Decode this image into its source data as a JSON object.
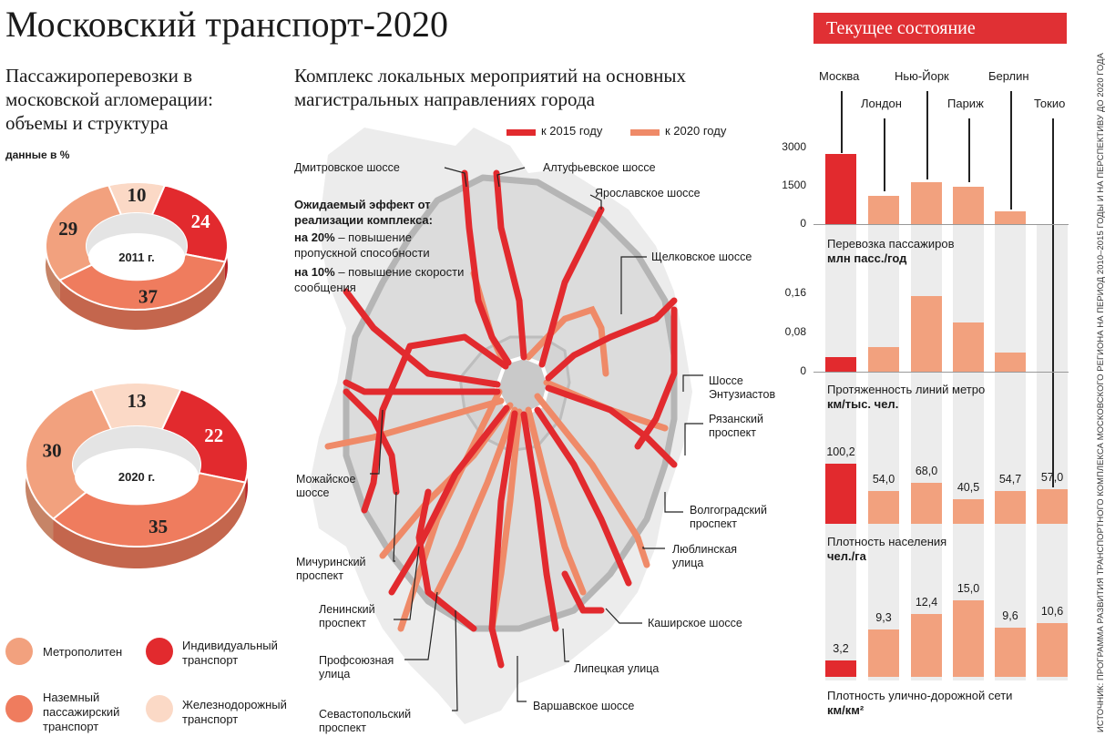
{
  "title": "Московский транспорт-2020",
  "passenger": {
    "title": "Пассажироперевозки в московской агломерации: объемы и структура",
    "note": "данные в %"
  },
  "legend": [
    {
      "label": "Метрополитен",
      "color": "#f2a17e"
    },
    {
      "label": "Индивидуальный транспорт",
      "color": "#e22a2e"
    },
    {
      "label": "Наземный пассажирский транспорт",
      "color": "#ef7c5e"
    },
    {
      "label": "Железнодорожный транспорт",
      "color": "#fbd9c6"
    }
  ],
  "map": {
    "title": "Комплекс локальных мероприятий на основных магистральных направлениях города",
    "legend": [
      {
        "label": "к 2015 году",
        "color": "#e22a2e"
      },
      {
        "label": "к 2020 году",
        "color": "#ef8a68"
      }
    ],
    "effect": {
      "heading": "Ожидаемый эффект от реализации комплекса:",
      "line1_value": "на 20%",
      "line1_text": " – повышение пропускной способности",
      "line2_value": "на 10%",
      "line2_text": " – повышение скорости сообщения"
    },
    "roads": [
      "Дмитровское шоссе",
      "Алтуфьевское шоссе",
      "Ярославское шоссе",
      "Щелковское шоссе",
      "Шоссе Энтузиастов",
      "Рязанский проспект",
      "Волгоградский проспект",
      "Люблинская улица",
      "Каширское шоссе",
      "Липецкая улица",
      "Варшавское шоссе",
      "Севастопольский проспект",
      "Профсоюзная улица",
      "Ленинский проспект",
      "Мичуринский проспект",
      "Можайское шоссе"
    ]
  },
  "current": {
    "title": "Текущее состояние",
    "metrics": [
      {
        "line1": "Перевозка пассажиров",
        "line2": "млн пасс./год"
      },
      {
        "line1": "Протяженность линий метро",
        "line2": "км/тыс. чел."
      },
      {
        "line1": "Плотность населения",
        "line2": "чел./га"
      },
      {
        "line1": "Плотность улично-дорожной сети",
        "line2": "км/км²"
      }
    ]
  },
  "source_text": "ИСТОЧНИК: ПРОГРАММА РАЗВИТИЯ ТРАНСПОРТНОГО КОМПЛЕКСА МОСКОВСКОГО РЕГИОНА НА ПЕРИОД 2010–2015 ГОДЫ И НА ПЕРСПЕКТИВУ ДО 2020 ГОДА",
  "chart_data": [
    {
      "type": "pie",
      "title": "2011 г.",
      "categories": [
        "Метрополитен",
        "Индивидуальный транспорт",
        "Наземный пассажирский транспорт",
        "Железнодорожный транспорт"
      ],
      "values": [
        29,
        24,
        37,
        10
      ]
    },
    {
      "type": "pie",
      "title": "2020 г.",
      "categories": [
        "Метрополитен",
        "Индивидуальный транспорт",
        "Наземный пассажирский транспорт",
        "Железнодорожный транспорт"
      ],
      "values": [
        30,
        22,
        35,
        13
      ]
    },
    {
      "type": "bar",
      "categories": [
        "Москва",
        "Лондон",
        "Нью-Йорк",
        "Париж",
        "Берлин",
        "Токио"
      ],
      "ylabel": "Перевозка пассажиров млн пасс./год",
      "ylim": [
        0,
        3000
      ],
      "yticks": [
        "0",
        "1500",
        "3000"
      ],
      "values": [
        2750,
        1100,
        1650,
        1480,
        500,
        null
      ]
    },
    {
      "type": "bar",
      "categories": [
        "Москва",
        "Лондон",
        "Нью-Йорк",
        "Париж",
        "Берлин",
        "Токио"
      ],
      "ylabel": "Протяженность линий метро км/тыс. чел.",
      "ylim": [
        0,
        0.16
      ],
      "yticks": [
        "0",
        "0,08",
        "0,16"
      ],
      "values": [
        0.03,
        0.05,
        0.155,
        0.1,
        0.04,
        null
      ]
    },
    {
      "type": "bar",
      "categories": [
        "Москва",
        "Лондон",
        "Нью-Йорк",
        "Париж",
        "Берлин",
        "Токио"
      ],
      "ylabel": "Плотность населения чел./га",
      "values": [
        100.2,
        54.0,
        68.0,
        40.5,
        54.7,
        57.0
      ],
      "labels": [
        "100,2",
        "54,0",
        "68,0",
        "40,5",
        "54,7",
        "57,0"
      ]
    },
    {
      "type": "bar",
      "categories": [
        "Москва",
        "Лондон",
        "Нью-Йорк",
        "Париж",
        "Берлин",
        "Токио"
      ],
      "ylabel": "Плотность улично-дорожной сети км/км²",
      "values": [
        3.2,
        9.3,
        12.4,
        15.0,
        9.6,
        10.6
      ],
      "labels": [
        "3,2",
        "9,3",
        "12,4",
        "15,0",
        "9,6",
        "10,6"
      ]
    }
  ]
}
